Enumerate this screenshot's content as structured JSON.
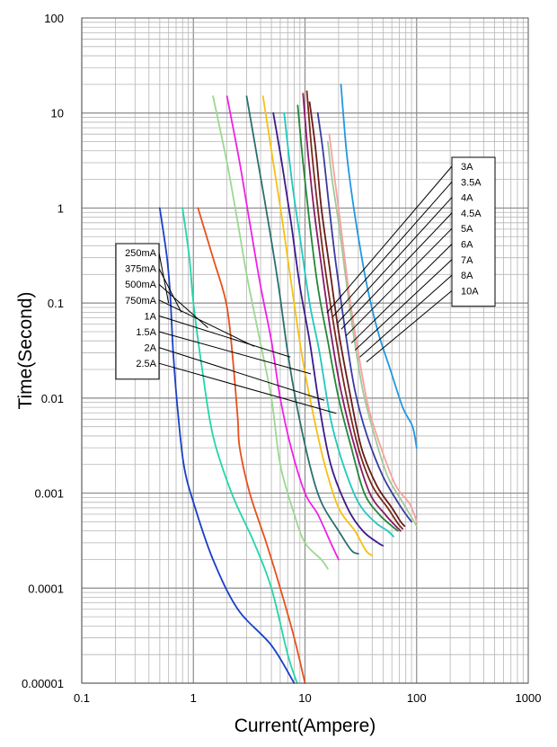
{
  "chart_data": {
    "type": "line",
    "title": "",
    "xlabel": "Current(Ampere)",
    "ylabel": "Time(Second)",
    "x_scale": "log",
    "y_scale": "log",
    "xlim": [
      0.1,
      1000
    ],
    "ylim": [
      1e-05,
      100
    ],
    "x_tick_labels": [
      "0.1",
      "1",
      "10",
      "100",
      "1000"
    ],
    "y_tick_labels": [
      "100",
      "10",
      "1",
      "0.1",
      "0.01",
      "0.001",
      "0.0001",
      "0.00001"
    ],
    "grid": true,
    "series": [
      {
        "name": "250mA",
        "color": "#1a3fc8",
        "points": [
          [
            0.5,
            1
          ],
          [
            0.58,
            0.3
          ],
          [
            0.62,
            0.12
          ],
          [
            0.66,
            0.03
          ],
          [
            0.72,
            0.008
          ],
          [
            0.82,
            0.002
          ],
          [
            1.0,
            0.0008
          ],
          [
            1.5,
            0.0002
          ],
          [
            2.5,
            6e-05
          ],
          [
            5,
            2.5e-05
          ],
          [
            8,
            1e-05
          ]
        ]
      },
      {
        "name": "375mA",
        "color": "#22d6a8",
        "points": [
          [
            0.8,
            1
          ],
          [
            0.92,
            0.3
          ],
          [
            1.0,
            0.1
          ],
          [
            1.2,
            0.02
          ],
          [
            1.5,
            0.004
          ],
          [
            2.2,
            0.001
          ],
          [
            3.5,
            0.0003
          ],
          [
            5,
            0.0001
          ],
          [
            7,
            2e-05
          ],
          [
            8.5,
            1e-05
          ]
        ]
      },
      {
        "name": "500mA",
        "color": "#e8501a",
        "points": [
          [
            1.1,
            1
          ],
          [
            1.5,
            0.3
          ],
          [
            1.9,
            0.12
          ],
          [
            2.1,
            0.06
          ],
          [
            2.3,
            0.02
          ],
          [
            2.5,
            0.006
          ],
          [
            2.6,
            0.003
          ],
          [
            3.2,
            0.001
          ],
          [
            4.5,
            0.0003
          ],
          [
            6,
            0.0001
          ],
          [
            8,
            3e-05
          ],
          [
            10,
            1e-05
          ]
        ]
      },
      {
        "name": "750mA",
        "color": "#9cd890",
        "points": [
          [
            1.5,
            15
          ],
          [
            2,
            3
          ],
          [
            2.5,
            0.7
          ],
          [
            3,
            0.2
          ],
          [
            3.8,
            0.05
          ],
          [
            5,
            0.01
          ],
          [
            6,
            0.002
          ],
          [
            8,
            0.0006
          ],
          [
            10,
            0.0003
          ],
          [
            14,
            0.0002
          ],
          [
            16,
            0.00016
          ]
        ]
      },
      {
        "name": "1A",
        "color": "#f020e8",
        "points": [
          [
            2,
            15
          ],
          [
            2.6,
            3
          ],
          [
            3.2,
            0.7
          ],
          [
            4,
            0.15
          ],
          [
            5,
            0.04
          ],
          [
            6,
            0.01
          ],
          [
            7.5,
            0.003
          ],
          [
            10,
            0.001
          ],
          [
            13,
            0.0006
          ],
          [
            17,
            0.0003
          ],
          [
            20,
            0.0002
          ]
        ]
      },
      {
        "name": "1.5A",
        "color": "#2c6e6e",
        "points": [
          [
            3,
            15
          ],
          [
            3.8,
            3
          ],
          [
            4.7,
            0.7
          ],
          [
            5.8,
            0.15
          ],
          [
            7,
            0.03
          ],
          [
            8.5,
            0.008
          ],
          [
            11,
            0.002
          ],
          [
            14,
            0.0008
          ],
          [
            20,
            0.0004
          ],
          [
            26,
            0.00025
          ],
          [
            30,
            0.00023
          ]
        ]
      },
      {
        "name": "2A",
        "color": "#f8c010",
        "points": [
          [
            4.2,
            15
          ],
          [
            5.2,
            3
          ],
          [
            6.3,
            0.7
          ],
          [
            7.6,
            0.15
          ],
          [
            9.3,
            0.03
          ],
          [
            11.5,
            0.008
          ],
          [
            15,
            0.002
          ],
          [
            20,
            0.0007
          ],
          [
            28,
            0.0004
          ],
          [
            35,
            0.00025
          ],
          [
            40,
            0.00022
          ]
        ]
      },
      {
        "name": "2.5A",
        "color": "#3a1a8a",
        "points": [
          [
            5.2,
            10
          ],
          [
            6.2,
            3
          ],
          [
            7.5,
            0.7
          ],
          [
            9,
            0.15
          ],
          [
            11,
            0.04
          ],
          [
            13.5,
            0.008
          ],
          [
            17,
            0.002
          ],
          [
            24,
            0.0007
          ],
          [
            33,
            0.0004
          ],
          [
            45,
            0.0003
          ],
          [
            50,
            0.00028
          ]
        ]
      },
      {
        "name": "3A",
        "color": "#20c8c0",
        "points": [
          [
            6.5,
            10
          ],
          [
            7.6,
            2
          ],
          [
            9,
            0.5
          ],
          [
            11,
            0.1
          ],
          [
            13.5,
            0.03
          ],
          [
            17,
            0.006
          ],
          [
            22,
            0.002
          ],
          [
            30,
            0.0008
          ],
          [
            42,
            0.0005
          ],
          [
            55,
            0.0004
          ],
          [
            62,
            0.00035
          ]
        ]
      },
      {
        "name": "3.5A",
        "color": "#228838",
        "points": [
          [
            8.6,
            12
          ],
          [
            9.6,
            3
          ],
          [
            11,
            0.7
          ],
          [
            13,
            0.15
          ],
          [
            16,
            0.04
          ],
          [
            20,
            0.01
          ],
          [
            26,
            0.003
          ],
          [
            34,
            0.001
          ],
          [
            46,
            0.0006
          ],
          [
            60,
            0.00045
          ],
          [
            68,
            0.0004
          ]
        ]
      },
      {
        "name": "4A",
        "color": "#8a1a6a",
        "points": [
          [
            9.6,
            16
          ],
          [
            10.6,
            4
          ],
          [
            12,
            1
          ],
          [
            14,
            0.25
          ],
          [
            17,
            0.05
          ],
          [
            21,
            0.012
          ],
          [
            28,
            0.003
          ],
          [
            38,
            0.001
          ],
          [
            52,
            0.0006
          ],
          [
            65,
            0.00045
          ],
          [
            72,
            0.0004
          ]
        ]
      },
      {
        "name": "4.5A",
        "color": "#7a2a1a",
        "points": [
          [
            10.4,
            17
          ],
          [
            11.5,
            4
          ],
          [
            13,
            1
          ],
          [
            15,
            0.25
          ],
          [
            18.5,
            0.05
          ],
          [
            23,
            0.012
          ],
          [
            30,
            0.003
          ],
          [
            40,
            0.0012
          ],
          [
            55,
            0.0007
          ],
          [
            68,
            0.00048
          ],
          [
            75,
            0.00042
          ]
        ]
      },
      {
        "name": "5A",
        "color": "#6a1a1a",
        "points": [
          [
            11,
            13
          ],
          [
            12.5,
            4
          ],
          [
            14,
            1
          ],
          [
            16.5,
            0.25
          ],
          [
            20,
            0.05
          ],
          [
            25,
            0.012
          ],
          [
            32,
            0.003
          ],
          [
            44,
            0.0012
          ],
          [
            60,
            0.0007
          ],
          [
            72,
            0.0005
          ],
          [
            78,
            0.00045
          ]
        ]
      },
      {
        "name": "6A",
        "color": "#3a3aa0",
        "points": [
          [
            13,
            10
          ],
          [
            14.5,
            4
          ],
          [
            16.5,
            1
          ],
          [
            19,
            0.25
          ],
          [
            23,
            0.05
          ],
          [
            28,
            0.012
          ],
          [
            36,
            0.004
          ],
          [
            50,
            0.0015
          ],
          [
            68,
            0.0008
          ],
          [
            80,
            0.0006
          ],
          [
            90,
            0.0005
          ]
        ]
      },
      {
        "name": "7A",
        "color": "#a0c898",
        "points": [
          [
            16,
            5
          ],
          [
            17.5,
            2
          ],
          [
            20,
            0.7
          ],
          [
            23,
            0.2
          ],
          [
            27,
            0.05
          ],
          [
            33,
            0.012
          ],
          [
            42,
            0.004
          ],
          [
            55,
            0.0015
          ],
          [
            75,
            0.0008
          ],
          [
            95,
            0.0005
          ],
          [
            100,
            0.00045
          ]
        ]
      },
      {
        "name": "8A",
        "color": "#f8a0a0",
        "points": [
          [
            16.5,
            6
          ],
          [
            18.5,
            2
          ],
          [
            21.5,
            0.5
          ],
          [
            25,
            0.12
          ],
          [
            30,
            0.03
          ],
          [
            37,
            0.008
          ],
          [
            48,
            0.003
          ],
          [
            65,
            0.0012
          ],
          [
            85,
            0.0008
          ],
          [
            95,
            0.0006
          ],
          [
            100,
            0.0005
          ]
        ]
      },
      {
        "name": "10A",
        "color": "#2098e0",
        "points": [
          [
            21,
            20
          ],
          [
            22,
            10
          ],
          [
            23.5,
            4
          ],
          [
            26,
            1.5
          ],
          [
            30,
            0.5
          ],
          [
            36,
            0.15
          ],
          [
            45,
            0.05
          ],
          [
            58,
            0.02
          ],
          [
            75,
            0.008
          ],
          [
            92,
            0.005
          ],
          [
            100,
            0.003
          ]
        ]
      }
    ],
    "legend_left": {
      "labels": [
        "250mA",
        "375mA",
        "500mA",
        "750mA",
        "1A",
        "1.5A",
        "2A",
        "2.5A"
      ],
      "pointers": [
        [
          0.6,
          0.1
        ],
        [
          0.78,
          0.08
        ],
        [
          1.35,
          0.055
        ],
        [
          3.5,
          0.035
        ],
        [
          7.4,
          0.027
        ],
        [
          11.3,
          0.018
        ],
        [
          14.9,
          0.0095
        ],
        [
          19.1,
          0.0069
        ]
      ]
    },
    "legend_right": {
      "labels": [
        "3A",
        "3.5A",
        "4A",
        "4.5A",
        "5A",
        "6A",
        "7A",
        "8A",
        "10A"
      ],
      "pointers": [
        [
          15.7,
          0.079
        ],
        [
          17.8,
          0.072
        ],
        [
          19.6,
          0.062
        ],
        [
          21.1,
          0.053
        ],
        [
          23.2,
          0.045
        ],
        [
          26.1,
          0.038
        ],
        [
          28.1,
          0.032
        ],
        [
          31.0,
          0.027
        ],
        [
          35.5,
          0.024
        ]
      ]
    }
  }
}
